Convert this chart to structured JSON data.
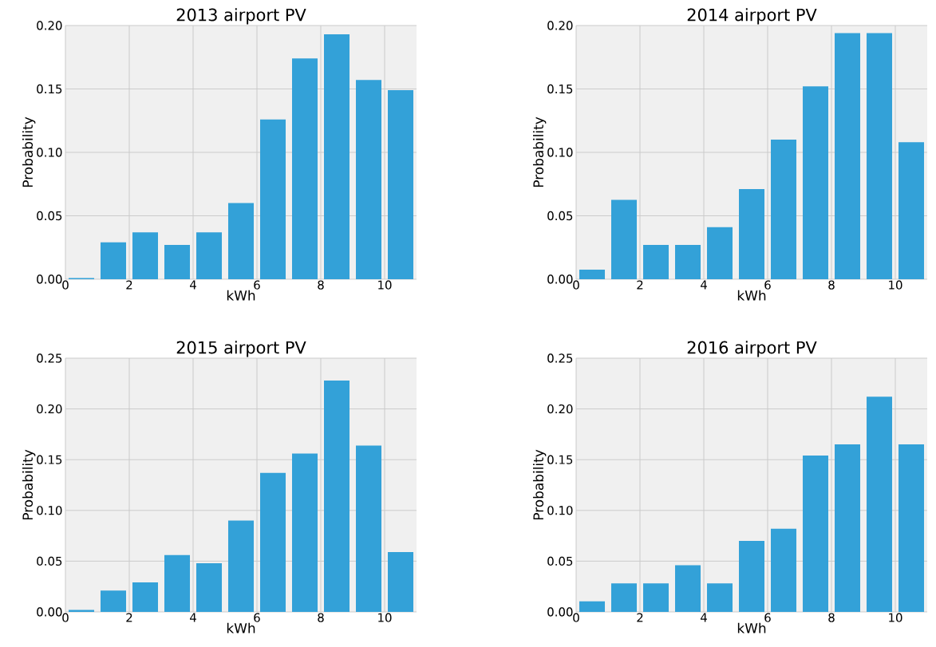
{
  "chart_data": [
    {
      "type": "histogram",
      "title": "2013 airport PV",
      "xlabel": "kWh",
      "ylabel": "Probability",
      "color": "#33a1d8",
      "grid": true,
      "bins": [
        0,
        1,
        2,
        3,
        4,
        5,
        6,
        7,
        8,
        9,
        10,
        11
      ],
      "values": [
        0.001,
        0.029,
        0.037,
        0.027,
        0.037,
        0.06,
        0.126,
        0.174,
        0.193,
        0.157,
        0.149
      ],
      "xlim": [
        0,
        11
      ],
      "ylim": [
        0,
        0.2
      ],
      "xticks": [
        0,
        2,
        4,
        6,
        8,
        10
      ],
      "yticks": [
        {
          "value": 0,
          "label": "0.00"
        },
        {
          "value": 0.05,
          "label": "0.05"
        },
        {
          "value": 0.1,
          "label": "0.10"
        },
        {
          "value": 0.15,
          "label": "0.15"
        },
        {
          "value": 0.2,
          "label": "0.20"
        }
      ]
    },
    {
      "type": "histogram",
      "title": "2014 airport PV",
      "xlabel": "kWh",
      "ylabel": "Probability",
      "color": "#33a1d8",
      "grid": true,
      "bins": [
        0,
        1,
        2,
        3,
        4,
        5,
        6,
        7,
        8,
        9,
        10,
        11
      ],
      "values": [
        0.0075,
        0.0625,
        0.027,
        0.027,
        0.041,
        0.071,
        0.11,
        0.152,
        0.194,
        0.194,
        0.108
      ],
      "xlim": [
        0,
        11
      ],
      "ylim": [
        0,
        0.2
      ],
      "xticks": [
        0,
        2,
        4,
        6,
        8,
        10
      ],
      "yticks": [
        {
          "value": 0,
          "label": "0.00"
        },
        {
          "value": 0.05,
          "label": "0.05"
        },
        {
          "value": 0.1,
          "label": "0.10"
        },
        {
          "value": 0.15,
          "label": "0.15"
        },
        {
          "value": 0.2,
          "label": "0.20"
        }
      ]
    },
    {
      "type": "histogram",
      "title": "2015 airport PV",
      "xlabel": "kWh",
      "ylabel": "Probability",
      "color": "#33a1d8",
      "grid": true,
      "bins": [
        0,
        1,
        2,
        3,
        4,
        5,
        6,
        7,
        8,
        9,
        10,
        11
      ],
      "values": [
        0.002,
        0.021,
        0.029,
        0.056,
        0.048,
        0.09,
        0.137,
        0.156,
        0.228,
        0.164,
        0.059
      ],
      "xlim": [
        0,
        11
      ],
      "ylim": [
        0,
        0.25
      ],
      "xticks": [
        0,
        2,
        4,
        6,
        8,
        10
      ],
      "yticks": [
        {
          "value": 0,
          "label": "0.00"
        },
        {
          "value": 0.05,
          "label": "0.05"
        },
        {
          "value": 0.1,
          "label": "0.10"
        },
        {
          "value": 0.15,
          "label": "0.15"
        },
        {
          "value": 0.2,
          "label": "0.20"
        },
        {
          "value": 0.25,
          "label": "0.25"
        }
      ]
    },
    {
      "type": "histogram",
      "title": "2016 airport PV",
      "xlabel": "kWh",
      "ylabel": "Probability",
      "color": "#33a1d8",
      "grid": true,
      "bins": [
        0,
        1,
        2,
        3,
        4,
        5,
        6,
        7,
        8,
        9,
        10,
        11
      ],
      "values": [
        0.0105,
        0.028,
        0.028,
        0.046,
        0.028,
        0.07,
        0.082,
        0.154,
        0.165,
        0.212,
        0.165
      ],
      "xlim": [
        0,
        11
      ],
      "ylim": [
        0,
        0.25
      ],
      "xticks": [
        0,
        2,
        4,
        6,
        8,
        10
      ],
      "yticks": [
        {
          "value": 0,
          "label": "0.00"
        },
        {
          "value": 0.05,
          "label": "0.05"
        },
        {
          "value": 0.1,
          "label": "0.10"
        },
        {
          "value": 0.15,
          "label": "0.15"
        },
        {
          "value": 0.2,
          "label": "0.20"
        },
        {
          "value": 0.25,
          "label": "0.25"
        }
      ]
    }
  ]
}
